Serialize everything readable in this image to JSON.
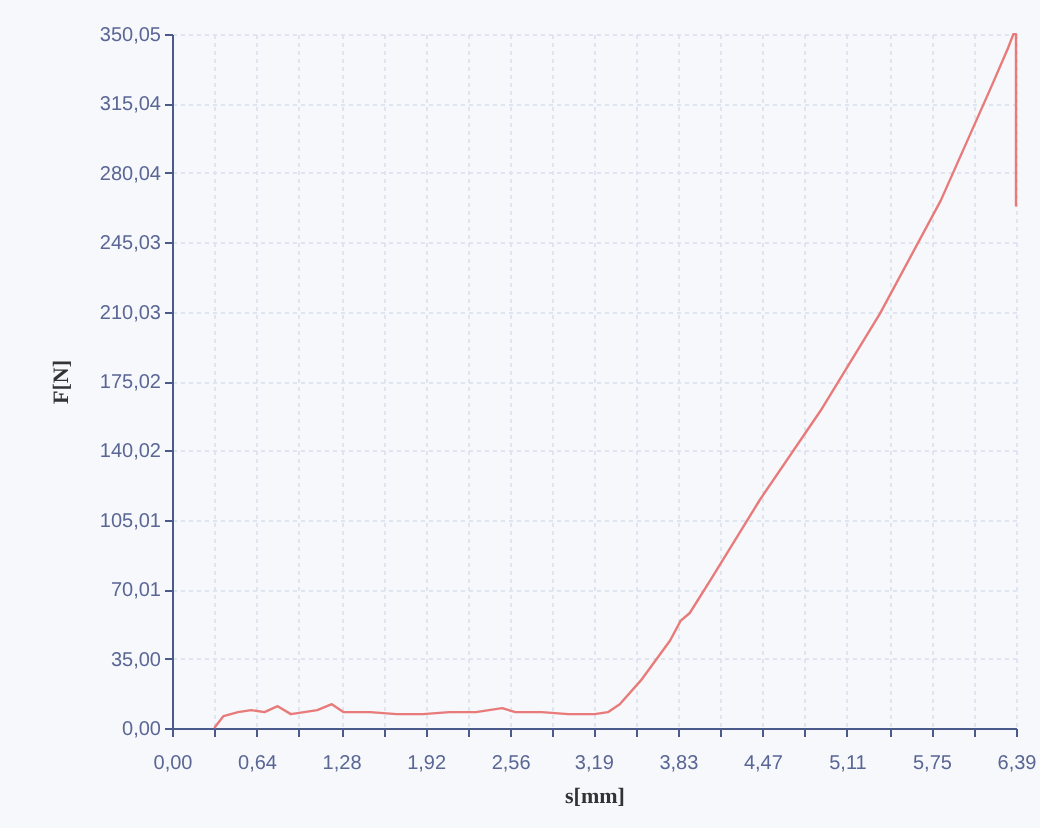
{
  "chart_data": {
    "type": "line",
    "xlabel": "s[mm]",
    "ylabel": "F[N]",
    "x": [
      0.32,
      0.39,
      0.5,
      0.6,
      0.7,
      0.8,
      0.9,
      1.0,
      1.1,
      1.21,
      1.3,
      1.5,
      1.7,
      1.9,
      2.1,
      2.3,
      2.5,
      2.6,
      2.8,
      3.0,
      3.2,
      3.3,
      3.39,
      3.55,
      3.77,
      3.85,
      3.92,
      4.08,
      4.45,
      4.91,
      5.36,
      5.82,
      6.2,
      6.33,
      6.37,
      6.39,
      6.39
    ],
    "series": [
      {
        "color": "#e87a7a",
        "values": [
          0,
          6,
          8,
          9,
          8,
          11,
          7,
          8,
          9,
          12,
          8,
          8,
          7,
          7,
          8,
          8,
          10,
          8,
          8,
          7,
          7,
          8,
          12,
          24,
          44,
          54,
          58,
          75,
          115,
          160,
          209,
          266,
          323,
          343,
          350,
          350,
          263
        ]
      }
    ],
    "xlim": [
      0,
      6.39
    ],
    "ylim": [
      0,
      350.05
    ],
    "xticks": [
      {
        "value": 0,
        "label": "0,00"
      },
      {
        "value": 0.32,
        "label": null
      },
      {
        "value": 0.64,
        "label": "0,64"
      },
      {
        "value": 0.96,
        "label": null
      },
      {
        "value": 1.28,
        "label": "1,28"
      },
      {
        "value": 1.6,
        "label": null
      },
      {
        "value": 1.92,
        "label": "1,92"
      },
      {
        "value": 2.24,
        "label": null
      },
      {
        "value": 2.56,
        "label": "2,56"
      },
      {
        "value": 2.875,
        "label": null
      },
      {
        "value": 3.19,
        "label": "3,19"
      },
      {
        "value": 3.51,
        "label": null
      },
      {
        "value": 3.83,
        "label": "3,83"
      },
      {
        "value": 4.15,
        "label": null
      },
      {
        "value": 4.47,
        "label": "4,47"
      },
      {
        "value": 4.79,
        "label": null
      },
      {
        "value": 5.11,
        "label": "5,11"
      },
      {
        "value": 5.43,
        "label": null
      },
      {
        "value": 5.75,
        "label": "5,75"
      },
      {
        "value": 6.07,
        "label": null
      },
      {
        "value": 6.39,
        "label": "6,39"
      }
    ],
    "yticks": [
      {
        "value": 0,
        "label": "0,00"
      },
      {
        "value": 35,
        "label": "35,00"
      },
      {
        "value": 70.01,
        "label": "70,01"
      },
      {
        "value": 105.01,
        "label": "105,01"
      },
      {
        "value": 140.02,
        "label": "140,02"
      },
      {
        "value": 175.02,
        "label": "175,02"
      },
      {
        "value": 210.03,
        "label": "210,03"
      },
      {
        "value": 245.03,
        "label": "245,03"
      },
      {
        "value": 280.04,
        "label": "280,04"
      },
      {
        "value": 315.04,
        "label": "315,04"
      },
      {
        "value": 350.05,
        "label": "350,05"
      }
    ],
    "grid": true
  }
}
